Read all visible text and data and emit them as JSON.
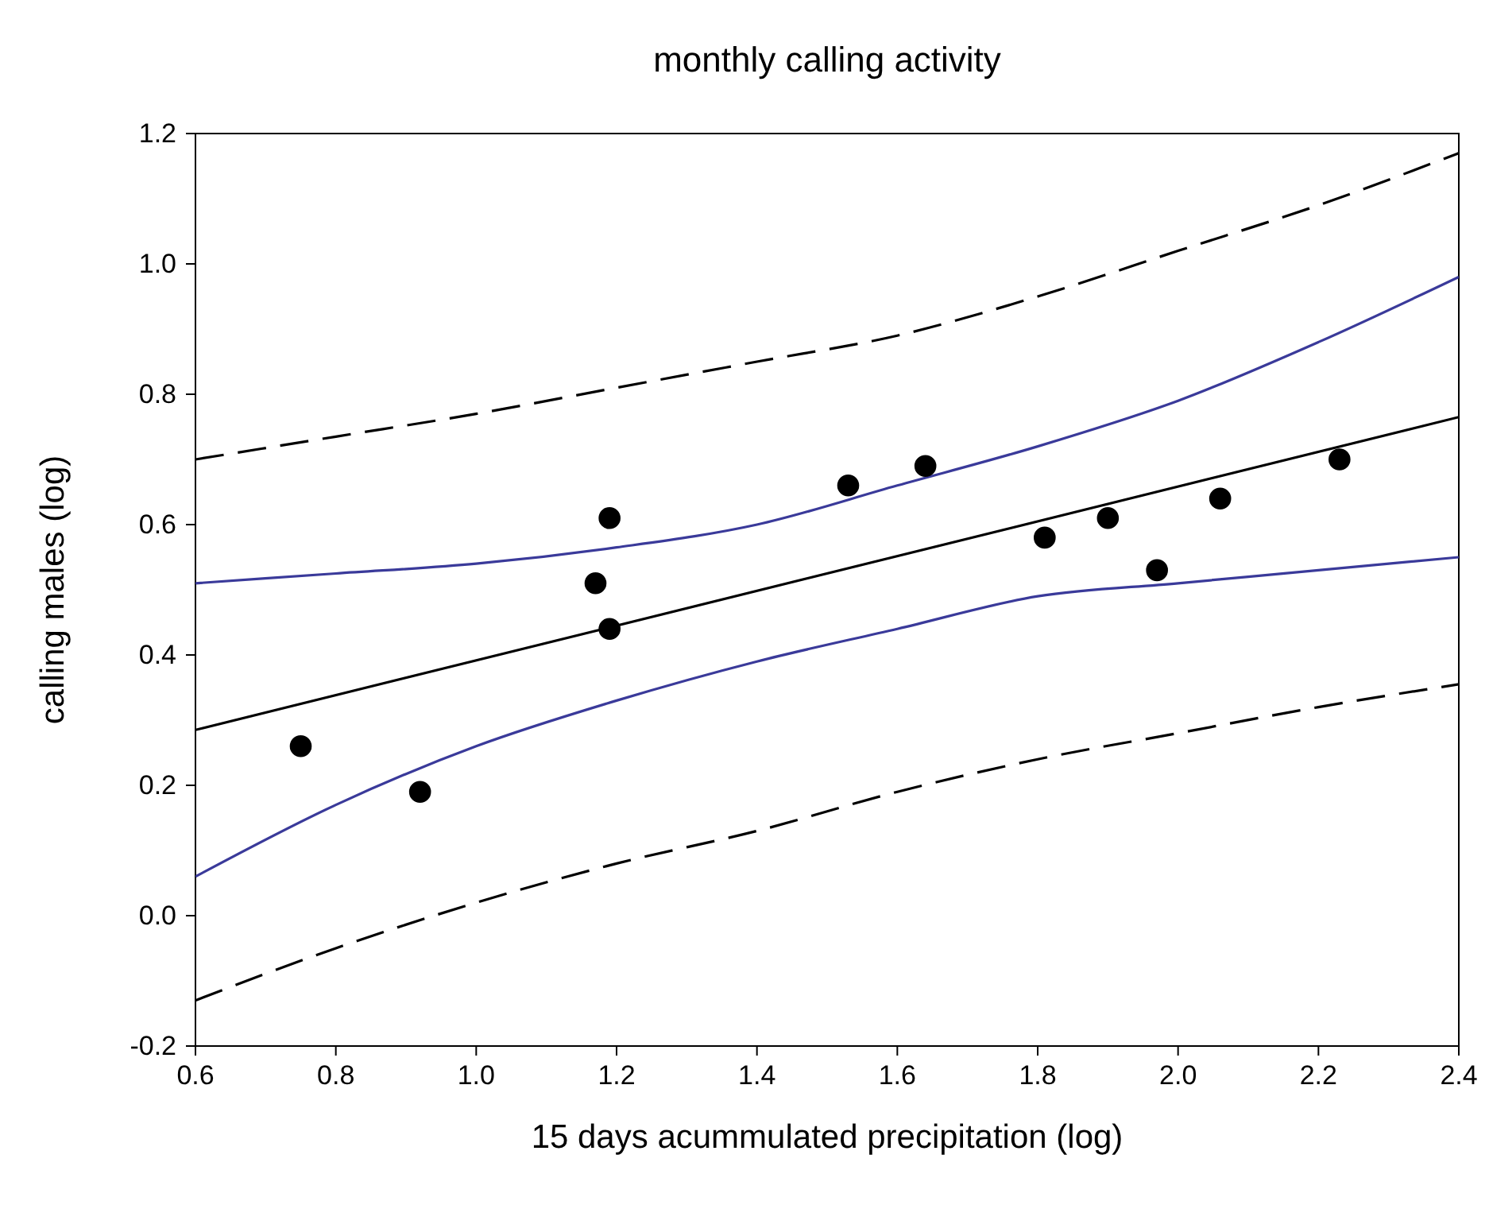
{
  "chart_data": {
    "type": "scatter",
    "title": "monthly calling activity",
    "xlabel": "15 days acummulated precipitation (log)",
    "ylabel": "calling males (log)",
    "xlim": [
      0.6,
      2.4
    ],
    "xticks": [
      {
        "value": 0.6,
        "label": "0.6"
      },
      {
        "value": 0.8,
        "label": "0.8"
      },
      {
        "value": 1.0,
        "label": "1.0"
      },
      {
        "value": 1.2,
        "label": "1.2"
      },
      {
        "value": 1.4,
        "label": "1.4"
      },
      {
        "value": 1.6,
        "label": "1.6"
      },
      {
        "value": 1.8,
        "label": "1.8"
      },
      {
        "value": 2.0,
        "label": "2.0"
      },
      {
        "value": 2.2,
        "label": "2.2"
      },
      {
        "value": 2.4,
        "label": "2.4"
      }
    ],
    "ylim": [
      -0.2,
      1.2
    ],
    "yticks": [
      {
        "value": -0.2,
        "label": "-0.2"
      },
      {
        "value": 0,
        "label": "0.0"
      },
      {
        "value": 0.2,
        "label": "0.2"
      },
      {
        "value": 0.4,
        "label": "0.4"
      },
      {
        "value": 0.6,
        "label": "0.6"
      },
      {
        "value": 0.8,
        "label": "0.8"
      },
      {
        "value": 1.0,
        "label": "1.0"
      },
      {
        "value": 1.2,
        "label": "1.2"
      }
    ],
    "grid": false,
    "series": [
      {
        "marker": "circle",
        "color": "#000000",
        "x": [
          0.75,
          0.92,
          1.17,
          1.19,
          1.19,
          1.53,
          1.64,
          1.81,
          1.9,
          1.97,
          2.06,
          2.23
        ],
        "values": [
          0.26,
          0.19,
          0.51,
          0.61,
          0.44,
          0.66,
          0.69,
          0.58,
          0.61,
          0.53,
          0.64,
          0.7
        ]
      },
      {
        "type": "line",
        "line_style": "solid",
        "color": "#000000",
        "x": [
          0.6,
          2.4
        ],
        "values": [
          0.285,
          0.765
        ]
      },
      {
        "type": "line",
        "line_style": "solid",
        "color": "#3a3a9a",
        "x": [
          0.6,
          0.8,
          1.0,
          1.2,
          1.4,
          1.6,
          1.8,
          2.0,
          2.2,
          2.4
        ],
        "values": [
          0.51,
          0.525,
          0.54,
          0.565,
          0.6,
          0.66,
          0.72,
          0.79,
          0.88,
          0.98
        ]
      },
      {
        "type": "line",
        "line_style": "solid",
        "color": "#3a3a9a",
        "x": [
          0.6,
          0.8,
          1.0,
          1.2,
          1.4,
          1.6,
          1.8,
          2.0,
          2.2,
          2.4
        ],
        "values": [
          0.06,
          0.17,
          0.26,
          0.33,
          0.39,
          0.44,
          0.49,
          0.51,
          0.53,
          0.55
        ]
      },
      {
        "type": "line",
        "line_style": "dashed",
        "color": "#000000",
        "x": [
          0.6,
          0.8,
          1.0,
          1.2,
          1.4,
          1.6,
          1.8,
          2.0,
          2.2,
          2.4
        ],
        "values": [
          0.7,
          0.735,
          0.77,
          0.81,
          0.85,
          0.89,
          0.95,
          1.02,
          1.09,
          1.17
        ]
      },
      {
        "type": "line",
        "line_style": "dashed",
        "color": "#000000",
        "x": [
          0.6,
          0.8,
          1.0,
          1.2,
          1.4,
          1.6,
          1.8,
          2.0,
          2.2,
          2.4
        ],
        "values": [
          -0.13,
          -0.05,
          0.02,
          0.08,
          0.13,
          0.19,
          0.24,
          0.28,
          0.32,
          0.355
        ]
      }
    ]
  }
}
